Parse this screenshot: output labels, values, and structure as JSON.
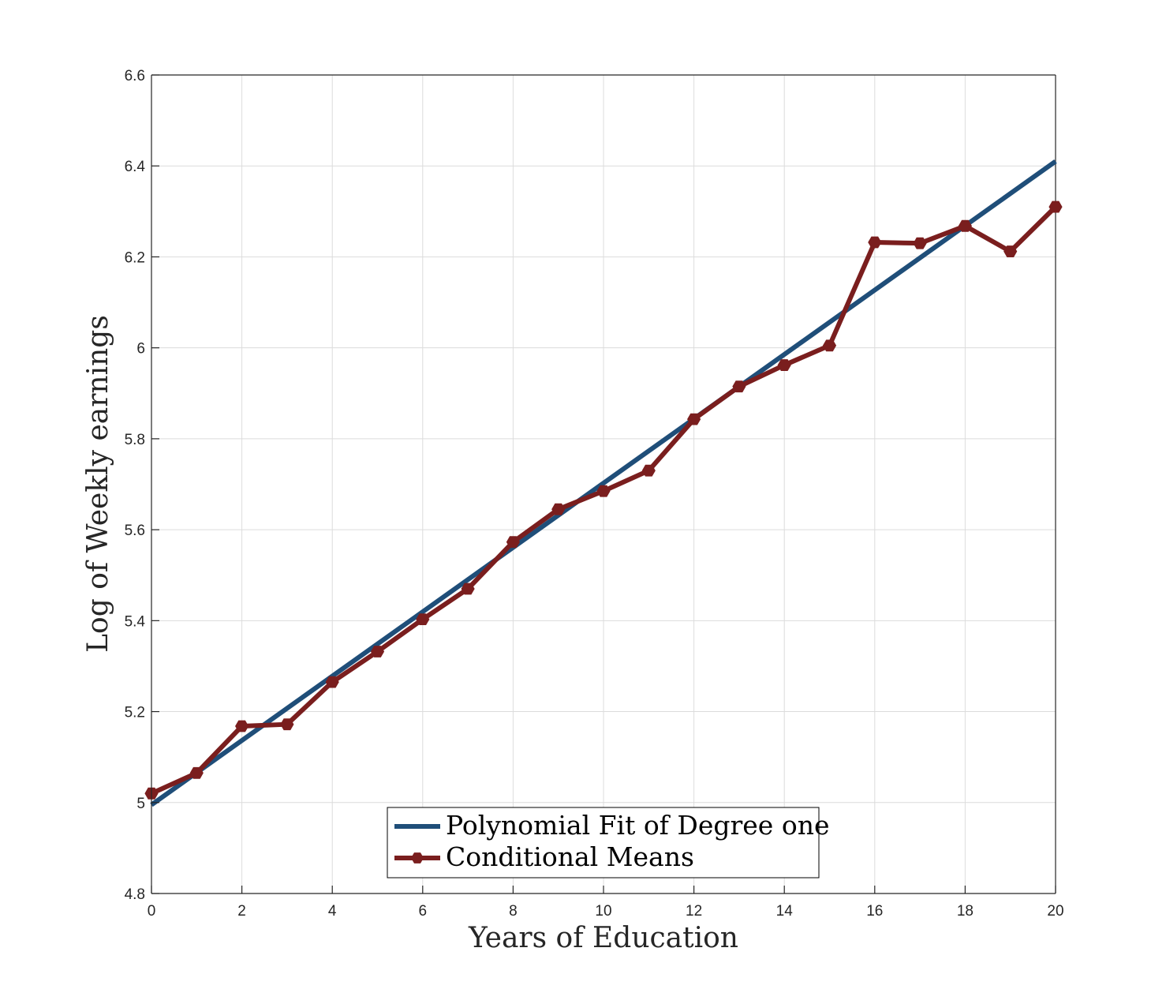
{
  "chart_data": {
    "type": "line",
    "title": "",
    "xlabel": "Years of Education",
    "ylabel": "Log of Weekly earnings",
    "xlim": [
      0,
      20
    ],
    "ylim": [
      4.8,
      6.6
    ],
    "x_ticks": [
      0,
      2,
      4,
      6,
      8,
      10,
      12,
      14,
      16,
      18,
      20
    ],
    "y_ticks": [
      4.8,
      5,
      5.2,
      5.4,
      5.6,
      5.8,
      6,
      6.2,
      6.4,
      6.6
    ],
    "x_tick_labels": [
      "0",
      "2",
      "4",
      "6",
      "8",
      "10",
      "12",
      "14",
      "16",
      "18",
      "20"
    ],
    "y_tick_labels": [
      "4.8",
      "5",
      "5.2",
      "5.4",
      "5.6",
      "5.8",
      "6",
      "6.2",
      "6.4",
      "6.6"
    ],
    "grid": true,
    "legend_position": "bottom-center",
    "series": [
      {
        "name": "Polynomial Fit of Degree one",
        "color": "#1f4e79",
        "marker": "none",
        "x": [
          0,
          20
        ],
        "y": [
          4.995,
          6.41
        ]
      },
      {
        "name": "Conditional Means",
        "color": "#7a1e1e",
        "marker": "hexagon",
        "x": [
          0,
          1,
          2,
          3,
          4,
          5,
          6,
          7,
          8,
          9,
          10,
          11,
          12,
          13,
          14,
          15,
          16,
          17,
          18,
          19,
          20
        ],
        "y": [
          5.02,
          5.065,
          5.168,
          5.172,
          5.265,
          5.332,
          5.403,
          5.47,
          5.573,
          5.645,
          5.685,
          5.73,
          5.843,
          5.915,
          5.962,
          6.005,
          6.232,
          6.23,
          6.268,
          6.212,
          6.31
        ]
      }
    ]
  }
}
